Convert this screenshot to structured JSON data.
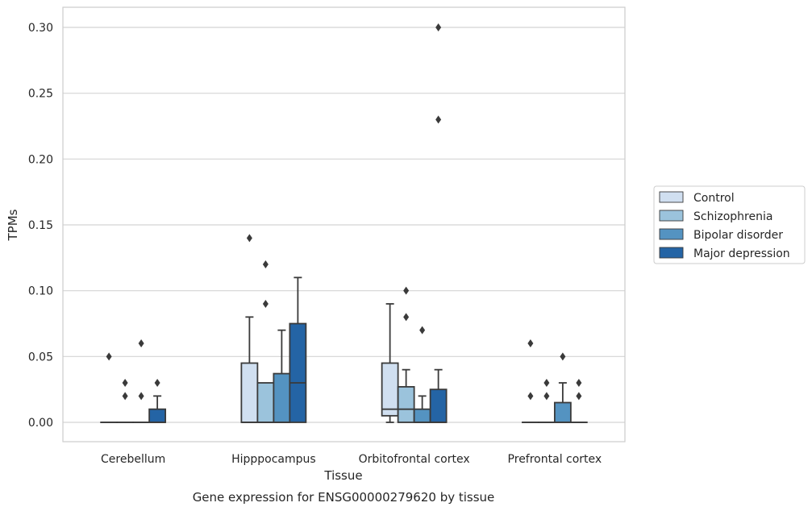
{
  "chart_data": {
    "type": "box",
    "caption": "Gene expression for ENSG00000279620 by tissue",
    "xlabel": "Tissue",
    "ylabel": "TPMs",
    "ylim": [
      -0.015,
      0.315
    ],
    "yticks": [
      "0.00",
      "0.05",
      "0.10",
      "0.15",
      "0.20",
      "0.25",
      "0.30"
    ],
    "categories": [
      "Cerebellum",
      "Hipppocampus",
      "Orbitofrontal cortex",
      "Prefrontal cortex"
    ],
    "grid": true,
    "legend_position": "right",
    "series": [
      {
        "name": "Control",
        "color": "#d0dff0",
        "boxes": [
          {
            "whislo": 0,
            "q1": 0,
            "med": 0,
            "q3": 0,
            "whishi": 0,
            "fliers": [
              0.05
            ]
          },
          {
            "whislo": 0,
            "q1": 0,
            "med": 0,
            "q3": 0.045,
            "whishi": 0.08,
            "fliers": [
              0.14
            ]
          },
          {
            "whislo": 0,
            "q1": 0.005,
            "med": 0.01,
            "q3": 0.045,
            "whishi": 0.09,
            "fliers": []
          },
          {
            "whislo": 0,
            "q1": 0,
            "med": 0,
            "q3": 0,
            "whishi": 0,
            "fliers": [
              0.06,
              0.02
            ]
          }
        ]
      },
      {
        "name": "Schizophrenia",
        "color": "#9bc3dc",
        "boxes": [
          {
            "whislo": 0,
            "q1": 0,
            "med": 0,
            "q3": 0,
            "whishi": 0,
            "fliers": [
              0.03,
              0.02
            ]
          },
          {
            "whislo": 0,
            "q1": 0,
            "med": 0,
            "q3": 0.03,
            "whishi": 0.03,
            "fliers": [
              0.12,
              0.09
            ]
          },
          {
            "whislo": 0,
            "q1": 0,
            "med": 0.01,
            "q3": 0.027,
            "whishi": 0.04,
            "fliers": [
              0.1,
              0.08
            ]
          },
          {
            "whislo": 0,
            "q1": 0,
            "med": 0,
            "q3": 0,
            "whishi": 0,
            "fliers": [
              0.03,
              0.02
            ]
          }
        ]
      },
      {
        "name": "Bipolar disorder",
        "color": "#5493c1",
        "boxes": [
          {
            "whislo": 0,
            "q1": 0,
            "med": 0,
            "q3": 0,
            "whishi": 0,
            "fliers": [
              0.06,
              0.02
            ]
          },
          {
            "whislo": 0,
            "q1": 0,
            "med": 0,
            "q3": 0.037,
            "whishi": 0.07,
            "fliers": []
          },
          {
            "whislo": 0,
            "q1": 0,
            "med": 0,
            "q3": 0.01,
            "whishi": 0.02,
            "fliers": [
              0.07
            ]
          },
          {
            "whislo": 0,
            "q1": 0,
            "med": 0,
            "q3": 0.015,
            "whishi": 0.03,
            "fliers": [
              0.05
            ]
          }
        ]
      },
      {
        "name": "Major depression",
        "color": "#2464a5",
        "boxes": [
          {
            "whislo": 0,
            "q1": 0,
            "med": 0,
            "q3": 0.01,
            "whishi": 0.02,
            "fliers": [
              0.03
            ]
          },
          {
            "whislo": 0,
            "q1": 0,
            "med": 0.03,
            "q3": 0.075,
            "whishi": 0.11,
            "fliers": []
          },
          {
            "whislo": 0,
            "q1": 0,
            "med": 0,
            "q3": 0.025,
            "whishi": 0.04,
            "fliers": [
              0.3,
              0.23
            ]
          },
          {
            "whislo": 0,
            "q1": 0,
            "med": 0,
            "q3": 0,
            "whishi": 0,
            "fliers": [
              0.03,
              0.02
            ]
          }
        ]
      }
    ]
  }
}
